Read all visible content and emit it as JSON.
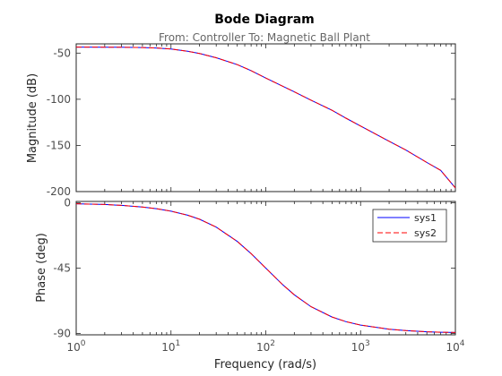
{
  "chart_data": {
    "title": "Bode Diagram",
    "subtitle": "From: Controller  To: Magnetic Ball Plant",
    "xlabel": "Frequency  (rad/s)",
    "x_scale": "log",
    "xlim": [
      1,
      10000
    ],
    "x_ticks": [
      {
        "value": 1,
        "base": "10",
        "exp": "0"
      },
      {
        "value": 10,
        "base": "10",
        "exp": "1"
      },
      {
        "value": 100,
        "base": "10",
        "exp": "2"
      },
      {
        "value": 1000,
        "base": "10",
        "exp": "3"
      },
      {
        "value": 10000,
        "base": "10",
        "exp": "4"
      }
    ],
    "legend_position": "top-right (phase panel)",
    "grid": false,
    "colors": {
      "sys1": "#0000ff",
      "sys2": "#ff0000",
      "axes": "#262626",
      "text": "#262626",
      "title": "#000000"
    },
    "panels": [
      {
        "type": "line",
        "ylabel": "Magnitude (dB)",
        "ylim": [
          -200,
          -40
        ],
        "y_ticks": [
          -50,
          -100,
          -150,
          -200
        ],
        "x": [
          1,
          2,
          3,
          5,
          7,
          10,
          15,
          20,
          30,
          50,
          70,
          100,
          200,
          300,
          500,
          700,
          1000,
          2000,
          3000,
          5000,
          7000,
          10000
        ],
        "series": [
          {
            "name": "sys1",
            "style": "solid",
            "values": [
              -43.5,
              -43.6,
              -43.7,
              -44.0,
              -44.5,
              -45.5,
              -48,
              -50.5,
              -55,
              -62.5,
              -69,
              -77,
              -92,
              -101,
              -112,
              -120.5,
              -129,
              -145.5,
              -155,
              -168.5,
              -177,
              -196
            ]
          },
          {
            "name": "sys2",
            "style": "dashed",
            "values": [
              -43.5,
              -43.6,
              -43.7,
              -44.0,
              -44.5,
              -45.5,
              -48,
              -50.5,
              -55,
              -62.5,
              -69,
              -77,
              -92,
              -101,
              -112,
              -120.5,
              -129,
              -145.5,
              -155,
              -168.5,
              -177,
              -196
            ]
          }
        ]
      },
      {
        "type": "line",
        "ylabel": "Phase (deg)",
        "ylim": [
          -91,
          1
        ],
        "y_ticks": [
          0,
          -45,
          -90
        ],
        "x": [
          1,
          2,
          3,
          5,
          7,
          10,
          15,
          20,
          30,
          50,
          70,
          100,
          150,
          200,
          300,
          500,
          700,
          1000,
          2000,
          3000,
          5000,
          7000,
          10000
        ],
        "series": [
          {
            "name": "sys1",
            "style": "solid",
            "values": [
              -0.6,
              -1.1,
              -1.7,
              -2.9,
              -4.0,
              -5.7,
              -8.5,
              -11.3,
              -16.7,
              -26.6,
              -35.0,
              -45.0,
              -56.3,
              -63.4,
              -71.6,
              -78.7,
              -81.9,
              -84.3,
              -87.1,
              -88.1,
              -88.9,
              -89.2,
              -89.4
            ]
          },
          {
            "name": "sys2",
            "style": "dashed",
            "values": [
              -0.6,
              -1.1,
              -1.7,
              -2.9,
              -4.0,
              -5.7,
              -8.5,
              -11.3,
              -16.7,
              -26.6,
              -35.0,
              -45.0,
              -56.3,
              -63.4,
              -71.6,
              -78.7,
              -81.9,
              -84.3,
              -87.1,
              -88.1,
              -88.9,
              -89.2,
              -89.4
            ]
          }
        ]
      }
    ]
  }
}
